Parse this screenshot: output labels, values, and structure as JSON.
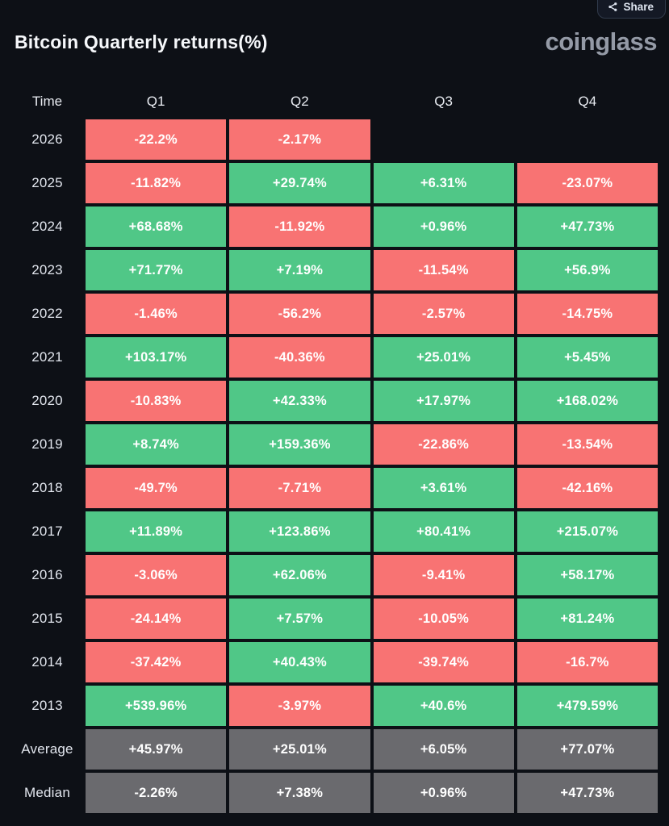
{
  "header": {
    "title": "Bitcoin Quarterly returns(%)",
    "logo": "coinglass",
    "share_label": "Share"
  },
  "colors": {
    "positive": "#50c787",
    "negative": "#f87373",
    "neutral": "#6a6a6e",
    "background": "#0d1016"
  },
  "table": {
    "columns": [
      "Time",
      "Q1",
      "Q2",
      "Q3",
      "Q4"
    ],
    "rows": [
      {
        "label": "2026",
        "cells": [
          {
            "value": "-22.2%",
            "type": "negative"
          },
          {
            "value": "-2.17%",
            "type": "negative"
          },
          null,
          null
        ]
      },
      {
        "label": "2025",
        "cells": [
          {
            "value": "-11.82%",
            "type": "negative"
          },
          {
            "value": "+29.74%",
            "type": "positive"
          },
          {
            "value": "+6.31%",
            "type": "positive"
          },
          {
            "value": "-23.07%",
            "type": "negative"
          }
        ]
      },
      {
        "label": "2024",
        "cells": [
          {
            "value": "+68.68%",
            "type": "positive"
          },
          {
            "value": "-11.92%",
            "type": "negative"
          },
          {
            "value": "+0.96%",
            "type": "positive"
          },
          {
            "value": "+47.73%",
            "type": "positive"
          }
        ]
      },
      {
        "label": "2023",
        "cells": [
          {
            "value": "+71.77%",
            "type": "positive"
          },
          {
            "value": "+7.19%",
            "type": "positive"
          },
          {
            "value": "-11.54%",
            "type": "negative"
          },
          {
            "value": "+56.9%",
            "type": "positive"
          }
        ]
      },
      {
        "label": "2022",
        "cells": [
          {
            "value": "-1.46%",
            "type": "negative"
          },
          {
            "value": "-56.2%",
            "type": "negative"
          },
          {
            "value": "-2.57%",
            "type": "negative"
          },
          {
            "value": "-14.75%",
            "type": "negative"
          }
        ]
      },
      {
        "label": "2021",
        "cells": [
          {
            "value": "+103.17%",
            "type": "positive"
          },
          {
            "value": "-40.36%",
            "type": "negative"
          },
          {
            "value": "+25.01%",
            "type": "positive"
          },
          {
            "value": "+5.45%",
            "type": "positive"
          }
        ]
      },
      {
        "label": "2020",
        "cells": [
          {
            "value": "-10.83%",
            "type": "negative"
          },
          {
            "value": "+42.33%",
            "type": "positive"
          },
          {
            "value": "+17.97%",
            "type": "positive"
          },
          {
            "value": "+168.02%",
            "type": "positive"
          }
        ]
      },
      {
        "label": "2019",
        "cells": [
          {
            "value": "+8.74%",
            "type": "positive"
          },
          {
            "value": "+159.36%",
            "type": "positive"
          },
          {
            "value": "-22.86%",
            "type": "negative"
          },
          {
            "value": "-13.54%",
            "type": "negative"
          }
        ]
      },
      {
        "label": "2018",
        "cells": [
          {
            "value": "-49.7%",
            "type": "negative"
          },
          {
            "value": "-7.71%",
            "type": "negative"
          },
          {
            "value": "+3.61%",
            "type": "positive"
          },
          {
            "value": "-42.16%",
            "type": "negative"
          }
        ]
      },
      {
        "label": "2017",
        "cells": [
          {
            "value": "+11.89%",
            "type": "positive"
          },
          {
            "value": "+123.86%",
            "type": "positive"
          },
          {
            "value": "+80.41%",
            "type": "positive"
          },
          {
            "value": "+215.07%",
            "type": "positive"
          }
        ]
      },
      {
        "label": "2016",
        "cells": [
          {
            "value": "-3.06%",
            "type": "negative"
          },
          {
            "value": "+62.06%",
            "type": "positive"
          },
          {
            "value": "-9.41%",
            "type": "negative"
          },
          {
            "value": "+58.17%",
            "type": "positive"
          }
        ]
      },
      {
        "label": "2015",
        "cells": [
          {
            "value": "-24.14%",
            "type": "negative"
          },
          {
            "value": "+7.57%",
            "type": "positive"
          },
          {
            "value": "-10.05%",
            "type": "negative"
          },
          {
            "value": "+81.24%",
            "type": "positive"
          }
        ]
      },
      {
        "label": "2014",
        "cells": [
          {
            "value": "-37.42%",
            "type": "negative"
          },
          {
            "value": "+40.43%",
            "type": "positive"
          },
          {
            "value": "-39.74%",
            "type": "negative"
          },
          {
            "value": "-16.7%",
            "type": "negative"
          }
        ]
      },
      {
        "label": "2013",
        "cells": [
          {
            "value": "+539.96%",
            "type": "positive"
          },
          {
            "value": "-3.97%",
            "type": "negative"
          },
          {
            "value": "+40.6%",
            "type": "positive"
          },
          {
            "value": "+479.59%",
            "type": "positive"
          }
        ]
      },
      {
        "label": "Average",
        "cells": [
          {
            "value": "+45.97%",
            "type": "neutral"
          },
          {
            "value": "+25.01%",
            "type": "neutral"
          },
          {
            "value": "+6.05%",
            "type": "neutral"
          },
          {
            "value": "+77.07%",
            "type": "neutral"
          }
        ]
      },
      {
        "label": "Median",
        "cells": [
          {
            "value": "-2.26%",
            "type": "neutral"
          },
          {
            "value": "+7.38%",
            "type": "neutral"
          },
          {
            "value": "+0.96%",
            "type": "neutral"
          },
          {
            "value": "+47.73%",
            "type": "neutral"
          }
        ]
      }
    ]
  },
  "chart_data": {
    "type": "table",
    "title": "Bitcoin Quarterly returns(%)",
    "columns": [
      "Q1",
      "Q2",
      "Q3",
      "Q4"
    ],
    "row_labels": [
      "2026",
      "2025",
      "2024",
      "2023",
      "2022",
      "2021",
      "2020",
      "2019",
      "2018",
      "2017",
      "2016",
      "2015",
      "2014",
      "2013",
      "Average",
      "Median"
    ],
    "values": [
      [
        -22.2,
        -2.17,
        null,
        null
      ],
      [
        -11.82,
        29.74,
        6.31,
        -23.07
      ],
      [
        68.68,
        -11.92,
        0.96,
        47.73
      ],
      [
        71.77,
        7.19,
        -11.54,
        56.9
      ],
      [
        -1.46,
        -56.2,
        -2.57,
        -14.75
      ],
      [
        103.17,
        -40.36,
        25.01,
        5.45
      ],
      [
        -10.83,
        42.33,
        17.97,
        168.02
      ],
      [
        8.74,
        159.36,
        -22.86,
        -13.54
      ],
      [
        -49.7,
        -7.71,
        3.61,
        -42.16
      ],
      [
        11.89,
        123.86,
        80.41,
        215.07
      ],
      [
        -3.06,
        62.06,
        -9.41,
        58.17
      ],
      [
        -24.14,
        7.57,
        -10.05,
        81.24
      ],
      [
        -37.42,
        40.43,
        -39.74,
        -16.7
      ],
      [
        539.96,
        -3.97,
        40.6,
        479.59
      ],
      [
        45.97,
        25.01,
        6.05,
        77.07
      ],
      [
        -2.26,
        7.38,
        0.96,
        47.73
      ]
    ],
    "color_rule": "positive=green, negative=red, Average/Median rows=gray",
    "legend_position": "none",
    "grid": false
  }
}
